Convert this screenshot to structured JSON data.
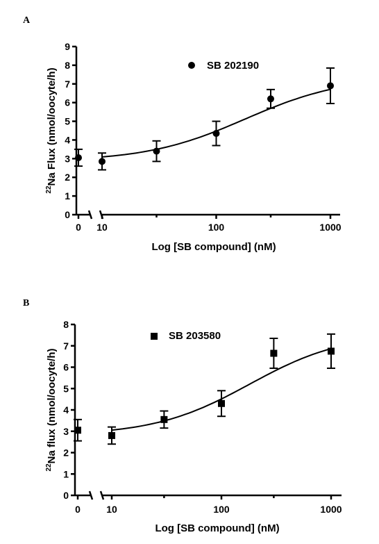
{
  "chart_data": [
    {
      "type": "scatter",
      "panel": "A",
      "marker": "circle",
      "legend": "SB 202190",
      "xlabel": "Log [SB compound] (nM)",
      "ylabel_sup": "22",
      "ylabel_main": "Na Flux (nmol/oocyte/h)",
      "x_scale": "log",
      "x_ticks": [
        "0",
        "10",
        "100",
        "1000"
      ],
      "y_ticks": [
        "0",
        "1",
        "2",
        "3",
        "4",
        "5",
        "6",
        "7",
        "8",
        "9"
      ],
      "ylim": [
        0,
        9
      ],
      "xlim": [
        6,
        1300
      ],
      "control": {
        "x": "0",
        "y": 3.05,
        "err": 0.45
      },
      "points": [
        {
          "x": 10,
          "y": 2.85,
          "err": 0.45
        },
        {
          "x": 30,
          "y": 3.4,
          "err": 0.55
        },
        {
          "x": 100,
          "y": 4.35,
          "err": 0.65
        },
        {
          "x": 300,
          "y": 6.2,
          "err": 0.5
        },
        {
          "x": 1000,
          "y": 6.9,
          "err": 0.95
        }
      ],
      "fit": {
        "bottom": 2.85,
        "top": 7.4,
        "ec50": 180
      }
    },
    {
      "type": "scatter",
      "panel": "B",
      "marker": "square",
      "legend": "SB 203580",
      "xlabel": "Log [SB compound] (nM)",
      "ylabel_sup": "22",
      "ylabel_main": "Na flux (nmol/oocyte/h)",
      "x_scale": "log",
      "x_ticks": [
        "0",
        "10",
        "100",
        "1000"
      ],
      "y_ticks": [
        "0",
        "1",
        "2",
        "3",
        "4",
        "5",
        "6",
        "7",
        "8"
      ],
      "ylim": [
        0,
        8
      ],
      "xlim": [
        6,
        1300
      ],
      "control": {
        "x": "0",
        "y": 3.05,
        "err": 0.5
      },
      "points": [
        {
          "x": 10,
          "y": 2.8,
          "err": 0.4
        },
        {
          "x": 30,
          "y": 3.55,
          "err": 0.4
        },
        {
          "x": 100,
          "y": 4.3,
          "err": 0.6
        },
        {
          "x": 300,
          "y": 6.65,
          "err": 0.7
        },
        {
          "x": 1000,
          "y": 6.75,
          "err": 0.8
        }
      ],
      "fit": {
        "bottom": 2.8,
        "top": 7.6,
        "ec50": 180
      }
    }
  ]
}
